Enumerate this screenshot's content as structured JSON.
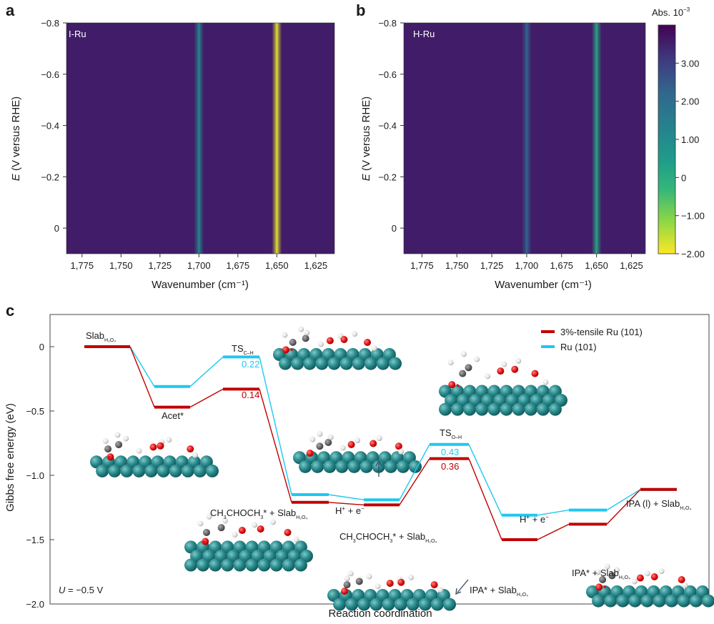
{
  "panels": {
    "a": "a",
    "b": "b",
    "c": "c"
  },
  "chart_data": [
    {
      "type": "heatmap",
      "panel": "a",
      "inset_label": "I-Ru",
      "xlabel": "Wavenumber (cm⁻¹)",
      "ylabel_italic": "E",
      "ylabel": " (V versus RHE)",
      "xlim": [
        1785,
        1613
      ],
      "ylim": [
        -0.8,
        0.1
      ],
      "xticks": [
        1775,
        1750,
        1725,
        1700,
        1675,
        1650,
        1625
      ],
      "xtick_labels": [
        "1,775",
        "1,750",
        "1,725",
        "1,700",
        "1,675",
        "1,650",
        "1,625"
      ],
      "yticks": [
        -0.8,
        -0.6,
        -0.4,
        -0.2,
        0
      ],
      "ytick_labels": [
        "−0.8",
        "−0.6",
        "−0.4",
        "−0.2",
        "0"
      ],
      "background_abs": 3.6,
      "bands": [
        {
          "wavenumber": 1700,
          "abs": 1.2
        },
        {
          "wavenumber": 1650,
          "abs": -1.8
        }
      ]
    },
    {
      "type": "heatmap",
      "panel": "b",
      "inset_label": "H-Ru",
      "xlabel": "Wavenumber (cm⁻¹)",
      "ylabel_italic": "E",
      "ylabel": " (V versus RHE)",
      "xlim": [
        1788,
        1615
      ],
      "ylim": [
        -0.8,
        0.1
      ],
      "xticks": [
        1775,
        1750,
        1725,
        1700,
        1675,
        1650,
        1625
      ],
      "xtick_labels": [
        "1,775",
        "1,750",
        "1,725",
        "1,700",
        "1,675",
        "1,650",
        "1,625"
      ],
      "yticks": [
        -0.8,
        -0.6,
        -0.4,
        -0.2,
        0
      ],
      "ytick_labels": [
        "−0.8",
        "−0.6",
        "−0.4",
        "−0.2",
        "0"
      ],
      "background_abs": 3.6,
      "bands": [
        {
          "wavenumber": 1700,
          "abs": 2.3
        },
        {
          "wavenumber": 1650,
          "abs": 0.2
        }
      ],
      "colorbar": {
        "title": "Abs. 10",
        "title_exp": "−3",
        "range": [
          -2.0,
          4.0
        ],
        "ticks": [
          3,
          2,
          1,
          0,
          -1,
          -2
        ],
        "tick_labels": [
          "3.00",
          "2.00",
          "1.00",
          "0",
          "−1.00",
          "−2.00"
        ],
        "colormap": "viridis-reversed"
      }
    },
    {
      "type": "line",
      "panel": "c",
      "subtype": "energy-profile",
      "xlabel": "Reaction coordination",
      "ylabel": "Gibbs free energy (eV)",
      "ylim": [
        -2.0,
        0.25
      ],
      "yticks": [
        0,
        -0.5,
        -1.0,
        -1.5,
        -2.0
      ],
      "ytick_labels": [
        "0",
        "−0.5",
        "−1.0",
        "−1.5",
        "−2.0"
      ],
      "legend": "top-right",
      "condition": {
        "italic": "U",
        "rest": " = −0.5 V"
      },
      "series": [
        {
          "name": "3%-tensile Ru (101)",
          "color": "#c00000",
          "values": [
            0,
            -0.47,
            -0.33,
            -1.21,
            -1.23,
            -0.87,
            -1.5,
            -1.38,
            -1.11
          ]
        },
        {
          "name": "Ru (101)",
          "color": "#1ec8f0",
          "values": [
            0,
            -0.31,
            -0.08,
            -1.15,
            -1.19,
            -0.76,
            -1.31,
            -1.27,
            -1.11
          ]
        }
      ],
      "barriers": [
        {
          "value": "0.22",
          "series": 1
        },
        {
          "value": "0.14",
          "series": 0
        },
        {
          "value": "0.43",
          "series": 1
        },
        {
          "value": "0.36",
          "series": 0
        }
      ],
      "labels": {
        "slab": {
          "main": "Slab",
          "sub": "H₂O₄"
        },
        "acet": "Acet*",
        "ts_ch": {
          "main": "TS",
          "sub": "C–H"
        },
        "ts_oh": {
          "main": "TS",
          "sub": "O–H"
        },
        "ch3_a": {
          "p1": "CH",
          "s1": "3",
          "p2": "CHOCH",
          "s2": "3",
          "p3": "* + Slab",
          "s3": "H₂O₄"
        },
        "ch3_b": {
          "p1": "CH",
          "s1": "3",
          "p2": "CHOCH",
          "s2": "3",
          "p3": "* + Slab",
          "s3": "H₂O₄"
        },
        "proton_a": {
          "h": "H",
          "sup1": "+",
          "mid": " + e",
          "sup2": "−"
        },
        "proton_b": {
          "h": "H",
          "sup1": "+",
          "mid": " + e",
          "sup2": "−"
        },
        "ipa_a": {
          "main": "IPA* + Slab",
          "sub": "H₂O₄"
        },
        "ipa_b": {
          "main": "IPA* + Slab",
          "sub": "H₂O₄"
        },
        "ipa_l": {
          "main": "IPA (l) + Slab",
          "sub": "H₂O₄"
        }
      }
    }
  ]
}
